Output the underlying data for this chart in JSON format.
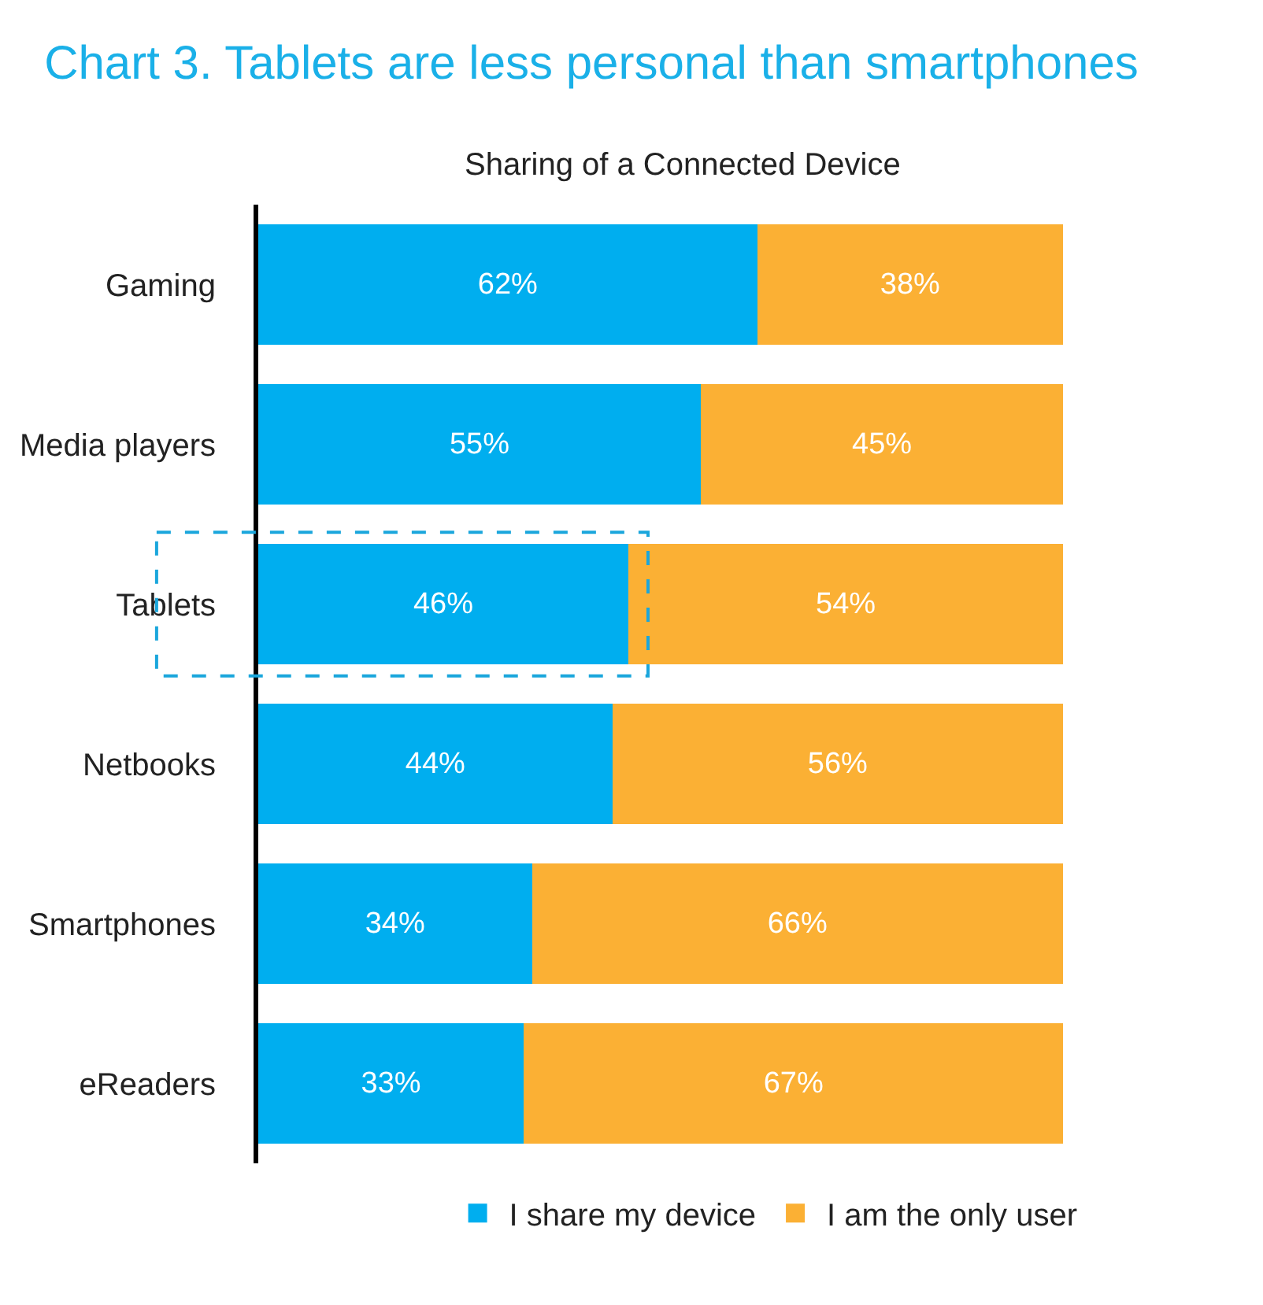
{
  "chart_data": {
    "type": "bar",
    "orientation": "horizontal",
    "stacked": true,
    "title": "Chart 3. Tablets are less personal than smartphones",
    "subtitle": "Sharing of a Connected Device",
    "categories": [
      "Gaming",
      "Media players",
      "Tablets",
      "Netbooks",
      "Smartphones",
      "eReaders"
    ],
    "series": [
      {
        "name": "I share my device",
        "color": "#00aeef",
        "values": [
          62,
          55,
          46,
          44,
          34,
          33
        ],
        "value_labels": [
          "62%",
          "55%",
          "46%",
          "44%",
          "34%",
          "33%"
        ]
      },
      {
        "name": "I am the only user",
        "color": "#fbb034",
        "values": [
          38,
          45,
          54,
          56,
          66,
          67
        ],
        "value_labels": [
          "38%",
          "45%",
          "54%",
          "56%",
          "66%",
          "67%"
        ]
      }
    ],
    "tick_labels": "y",
    "legend": "bottom"
  }
}
